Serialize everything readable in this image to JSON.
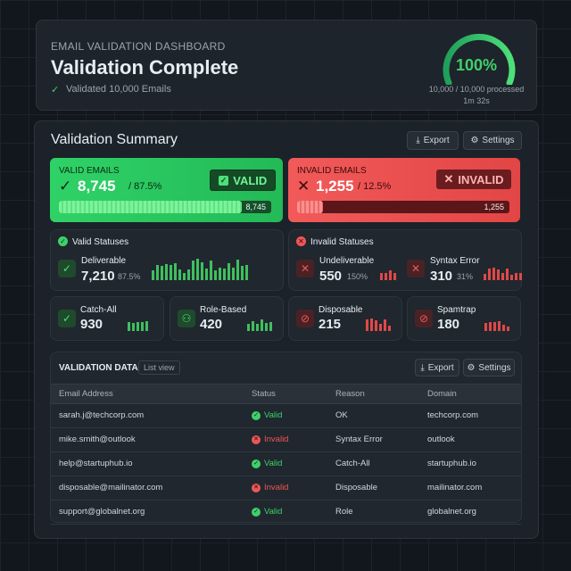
{
  "header": {
    "subtitle": "EMAIL VALIDATION DASHBOARD",
    "title": "Validation Complete",
    "status": "Validated 10,000 Emails",
    "gauge": {
      "value": "100%",
      "processed": "10,000 / 10,000 processed",
      "time": "1m 32s"
    }
  },
  "summary": {
    "title": "Validation Summary",
    "buttons": [
      "Export",
      "Settings"
    ],
    "valid": {
      "label": "VALID EMAILS",
      "count": "8,745",
      "percent": "/ 87.5%",
      "badge": "VALID",
      "bar_label": "8,745"
    },
    "invalid": {
      "label": "INVALID EMAILS",
      "count": "1,255",
      "percent": "/ 12.5%",
      "badge": "INVALID",
      "bar_label": "1,255"
    }
  },
  "valid_statuses": {
    "title": "Valid Statuses",
    "items": [
      {
        "label": "Deliverable",
        "count": "7,210",
        "percent": "87.5%"
      }
    ]
  },
  "invalid_statuses": {
    "title": "Invalid Statuses",
    "items": [
      {
        "label": "Undeliverable",
        "count": "550",
        "percent": "150%"
      },
      {
        "label": "Syntax Error",
        "count": "310",
        "percent": "31%"
      }
    ]
  },
  "small_cards": [
    {
      "label": "Catch-All",
      "count": "930"
    },
    {
      "label": "Role-Based",
      "count": "420"
    },
    {
      "label": "Disposable",
      "count": "215"
    },
    {
      "label": "Spamtrap",
      "count": "180"
    }
  ],
  "table": {
    "title": "VALIDATION DATA",
    "tag": "List view",
    "buttons": [
      "Export",
      "Settings"
    ],
    "columns": [
      "Email Address",
      "Status",
      "Reason",
      "Domain"
    ],
    "rows": [
      [
        "sarah.j@techcorp.com",
        "Valid",
        "OK",
        "techcorp.com"
      ],
      [
        "mike.smith@outlook",
        "Invalid",
        "Syntax Error",
        "outlook"
      ],
      [
        "help@startuphub.io",
        "Valid",
        "Catch-All",
        "startuphub.io"
      ],
      [
        "disposable@mailinator.com",
        "Invalid",
        "Disposable",
        "mailinator.com"
      ],
      [
        "support@globalnet.org",
        "Valid",
        "Role",
        "globalnet.org"
      ]
    ]
  }
}
